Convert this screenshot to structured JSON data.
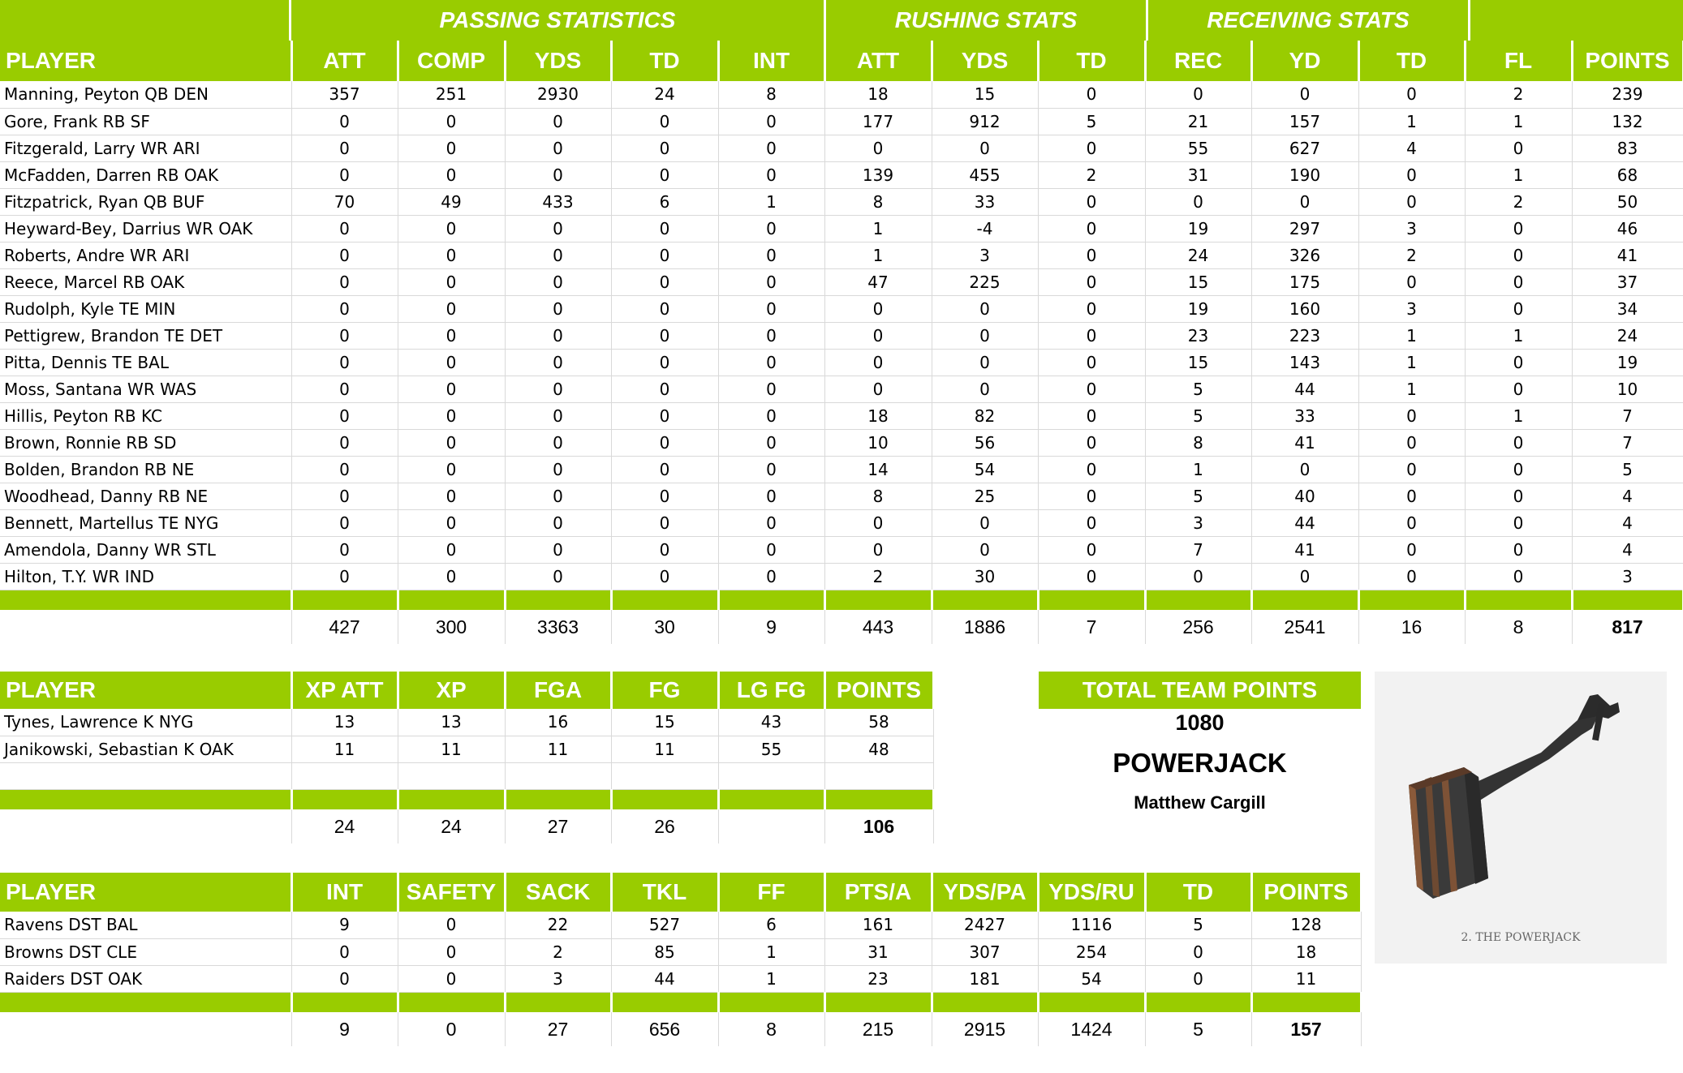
{
  "offense": {
    "groups": [
      "PASSING STATISTICS",
      "RUSHING STATS",
      "RECEIVING STATS"
    ],
    "columns": [
      "PLAYER",
      "ATT",
      "COMP",
      "YDS",
      "TD",
      "INT",
      "ATT",
      "YDS",
      "TD",
      "REC",
      "YD",
      "TD",
      "FL",
      "POINTS"
    ],
    "rows": [
      [
        "Manning, Peyton QB DEN",
        "357",
        "251",
        "2930",
        "24",
        "8",
        "18",
        "15",
        "0",
        "0",
        "0",
        "0",
        "2",
        "239"
      ],
      [
        "Gore, Frank RB SF",
        "0",
        "0",
        "0",
        "0",
        "0",
        "177",
        "912",
        "5",
        "21",
        "157",
        "1",
        "1",
        "132"
      ],
      [
        "Fitzgerald, Larry WR ARI",
        "0",
        "0",
        "0",
        "0",
        "0",
        "0",
        "0",
        "0",
        "55",
        "627",
        "4",
        "0",
        "83"
      ],
      [
        "McFadden, Darren RB OAK",
        "0",
        "0",
        "0",
        "0",
        "0",
        "139",
        "455",
        "2",
        "31",
        "190",
        "0",
        "1",
        "68"
      ],
      [
        "Fitzpatrick, Ryan QB BUF",
        "70",
        "49",
        "433",
        "6",
        "1",
        "8",
        "33",
        "0",
        "0",
        "0",
        "0",
        "2",
        "50"
      ],
      [
        "Heyward-Bey, Darrius WR OAK",
        "0",
        "0",
        "0",
        "0",
        "0",
        "1",
        "-4",
        "0",
        "19",
        "297",
        "3",
        "0",
        "46"
      ],
      [
        "Roberts, Andre WR ARI",
        "0",
        "0",
        "0",
        "0",
        "0",
        "1",
        "3",
        "0",
        "24",
        "326",
        "2",
        "0",
        "41"
      ],
      [
        "Reece, Marcel RB OAK",
        "0",
        "0",
        "0",
        "0",
        "0",
        "47",
        "225",
        "0",
        "15",
        "175",
        "0",
        "0",
        "37"
      ],
      [
        "Rudolph, Kyle TE MIN",
        "0",
        "0",
        "0",
        "0",
        "0",
        "0",
        "0",
        "0",
        "19",
        "160",
        "3",
        "0",
        "34"
      ],
      [
        "Pettigrew, Brandon TE DET",
        "0",
        "0",
        "0",
        "0",
        "0",
        "0",
        "0",
        "0",
        "23",
        "223",
        "1",
        "1",
        "24"
      ],
      [
        "Pitta, Dennis TE BAL",
        "0",
        "0",
        "0",
        "0",
        "0",
        "0",
        "0",
        "0",
        "15",
        "143",
        "1",
        "0",
        "19"
      ],
      [
        "Moss, Santana WR WAS",
        "0",
        "0",
        "0",
        "0",
        "0",
        "0",
        "0",
        "0",
        "5",
        "44",
        "1",
        "0",
        "10"
      ],
      [
        "Hillis, Peyton RB KC",
        "0",
        "0",
        "0",
        "0",
        "0",
        "18",
        "82",
        "0",
        "5",
        "33",
        "0",
        "1",
        "7"
      ],
      [
        "Brown, Ronnie RB SD",
        "0",
        "0",
        "0",
        "0",
        "0",
        "10",
        "56",
        "0",
        "8",
        "41",
        "0",
        "0",
        "7"
      ],
      [
        "Bolden, Brandon RB NE",
        "0",
        "0",
        "0",
        "0",
        "0",
        "14",
        "54",
        "0",
        "1",
        "0",
        "0",
        "0",
        "5"
      ],
      [
        "Woodhead, Danny RB NE",
        "0",
        "0",
        "0",
        "0",
        "0",
        "8",
        "25",
        "0",
        "5",
        "40",
        "0",
        "0",
        "4"
      ],
      [
        "Bennett, Martellus TE NYG",
        "0",
        "0",
        "0",
        "0",
        "0",
        "0",
        "0",
        "0",
        "3",
        "44",
        "0",
        "0",
        "4"
      ],
      [
        "Amendola, Danny WR STL",
        "0",
        "0",
        "0",
        "0",
        "0",
        "0",
        "0",
        "0",
        "7",
        "41",
        "0",
        "0",
        "4"
      ],
      [
        "Hilton, T.Y. WR IND",
        "0",
        "0",
        "0",
        "0",
        "0",
        "2",
        "30",
        "0",
        "0",
        "0",
        "0",
        "0",
        "3"
      ]
    ],
    "totals": [
      "",
      "427",
      "300",
      "3363",
      "30",
      "9",
      "443",
      "1886",
      "7",
      "256",
      "2541",
      "16",
      "8",
      "817"
    ]
  },
  "kickers": {
    "columns": [
      "PLAYER",
      "XP ATT",
      "XP",
      "FGA",
      "FG",
      "LG FG",
      "POINTS"
    ],
    "rows": [
      [
        "Tynes, Lawrence K NYG",
        "13",
        "13",
        "16",
        "15",
        "43",
        "58"
      ],
      [
        "Janikowski, Sebastian K OAK",
        "11",
        "11",
        "11",
        "11",
        "55",
        "48"
      ]
    ],
    "totals": [
      "",
      "24",
      "24",
      "27",
      "26",
      "",
      "106"
    ]
  },
  "defense": {
    "columns": [
      "PLAYER",
      "INT",
      "SAFETY",
      "SACK",
      "TKL",
      "FF",
      "PTS/A",
      "YDS/PA",
      "YDS/RU",
      "TD",
      "POINTS"
    ],
    "rows": [
      [
        "Ravens DST BAL",
        "9",
        "0",
        "22",
        "527",
        "6",
        "161",
        "2427",
        "1116",
        "5",
        "128"
      ],
      [
        "Browns DST CLE",
        "0",
        "0",
        "2",
        "85",
        "1",
        "31",
        "307",
        "254",
        "0",
        "18"
      ],
      [
        "Raiders DST OAK",
        "0",
        "0",
        "3",
        "44",
        "1",
        "23",
        "181",
        "54",
        "0",
        "11"
      ]
    ],
    "totals": [
      "",
      "9",
      "0",
      "27",
      "656",
      "8",
      "215",
      "2915",
      "1424",
      "5",
      "157"
    ]
  },
  "team": {
    "total_label": "TOTAL TEAM POINTS",
    "total_points": "1080",
    "name": "POWERJACK",
    "owner": "Matthew Cargill",
    "logo_caption": "2. THE POWERJACK"
  },
  "colors": {
    "header_green": "#99CC00",
    "header_text": "#ffffff"
  }
}
